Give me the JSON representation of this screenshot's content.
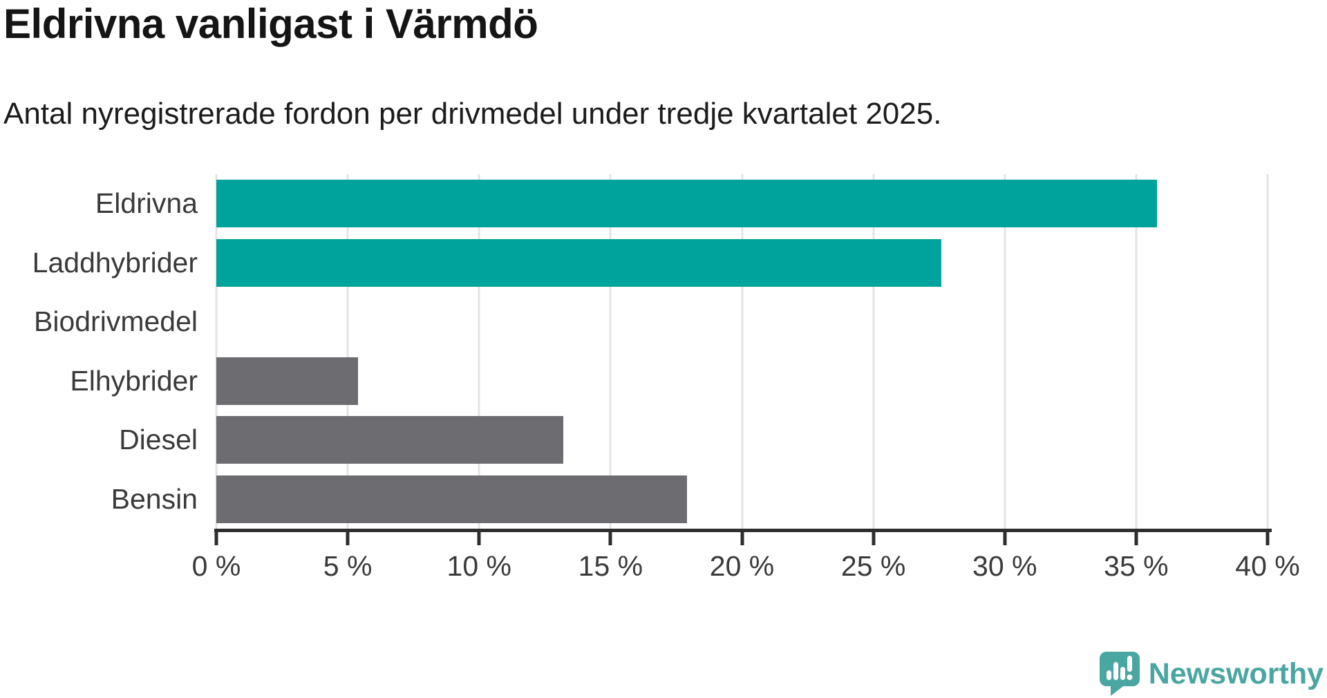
{
  "header": {
    "title": "Eldrivna vanligast i Värmdö",
    "subtitle": "Antal nyregistrerade fordon per drivmedel under tredje kvartalet 2025."
  },
  "chart_data": {
    "type": "bar",
    "orientation": "horizontal",
    "title": "Eldrivna vanligast i Värmdö",
    "subtitle": "Antal nyregistrerade fordon per drivmedel under tredje kvartalet 2025.",
    "categories": [
      "Eldrivna",
      "Laddhybrider",
      "Biodrivmedel",
      "Elhybrider",
      "Diesel",
      "Bensin"
    ],
    "values": [
      35.8,
      27.6,
      0,
      5.4,
      13.2,
      17.9
    ],
    "unit": "%",
    "bar_colors": [
      "#00a39b",
      "#00a39b",
      "#6c6c71",
      "#6c6c71",
      "#6c6c71",
      "#6c6c71"
    ],
    "xlim": [
      0,
      40
    ],
    "tick_values": [
      0,
      5,
      10,
      15,
      20,
      25,
      30,
      35,
      40
    ],
    "tick_labels": [
      "0 %",
      "5 %",
      "10 %",
      "15 %",
      "20 %",
      "25 %",
      "30 %",
      "35 %",
      "40 %"
    ],
    "grid": true,
    "legend": "none",
    "xlabel": "",
    "ylabel": ""
  },
  "branding": {
    "logo_text": "Newsworthy",
    "logo_icon": "newsworthy-speech-bubble-bar-chart-icon",
    "logo_color": "#4aa6a1"
  },
  "colors": {
    "highlight_bar": "#00a39b",
    "default_bar": "#6c6c71",
    "gridline": "#e4e4e4",
    "axis": "#2e2e2e",
    "label_text": "#3a3a3a",
    "title_text": "#151515"
  }
}
